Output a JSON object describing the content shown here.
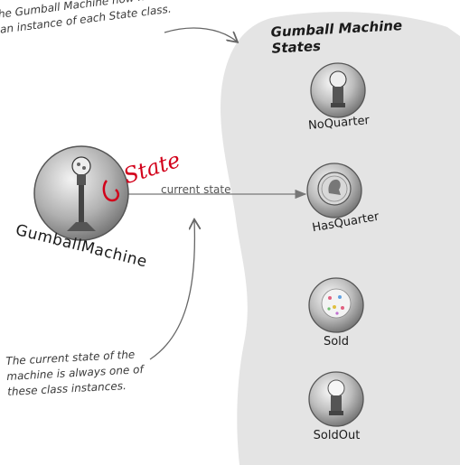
{
  "annotations": {
    "top_note": "he Gumball Machine now holds an instance of each State class.",
    "bottom_note": "The current state of the machine is always one of these class instances.",
    "handwritten_edit": "State"
  },
  "panel": {
    "title": "Gumball Machine States"
  },
  "context": {
    "name": "GumballMachine"
  },
  "edge": {
    "label": "current state"
  },
  "states": {
    "no_quarter": "NoQuarter",
    "has_quarter": "HasQuarter",
    "sold": "Sold",
    "sold_out": "SoldOut"
  },
  "colors": {
    "panel_bg": "#e4e4e4",
    "ink": "#1a1a1a",
    "arrow": "#777777",
    "red_pen": "#d2001a"
  }
}
